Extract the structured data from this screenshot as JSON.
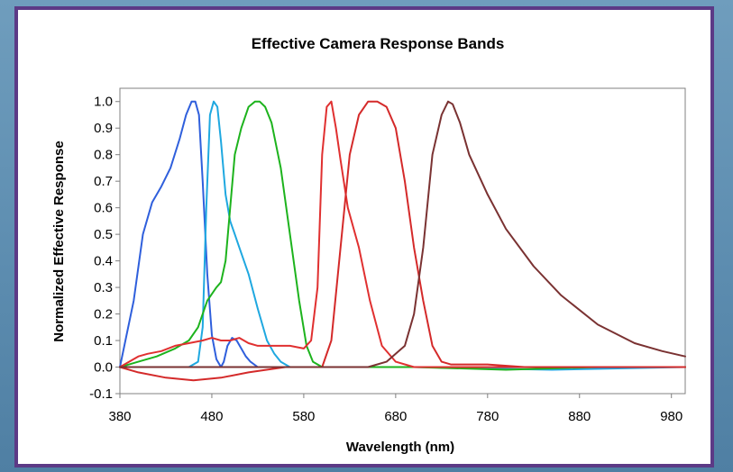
{
  "chart_data": {
    "type": "line",
    "title": "Effective Camera Response Bands",
    "xlabel": "Wavelength (nm)",
    "ylabel": "Normalized Effective Response",
    "xlim": [
      380,
      995
    ],
    "ylim": [
      -0.1,
      1.05
    ],
    "xticks": [
      380,
      480,
      580,
      680,
      780,
      880,
      980
    ],
    "yticks": [
      -0.1,
      0.0,
      0.1,
      0.2,
      0.3,
      0.4,
      0.5,
      0.6,
      0.7,
      0.8,
      0.9,
      1.0
    ],
    "ytick_labels": [
      "-0.1",
      "0.0",
      "0.1",
      "0.2",
      "0.3",
      "0.4",
      "0.5",
      "0.6",
      "0.7",
      "0.8",
      "0.9",
      "1.0"
    ],
    "grid": false,
    "legend": "none",
    "series": [
      {
        "color": "#2f5fdc",
        "x": [
          380,
          395,
          405,
          415,
          425,
          435,
          445,
          452,
          458,
          462,
          466,
          470,
          475,
          480,
          485,
          490,
          493,
          497,
          502,
          507,
          512,
          517,
          522,
          530,
          540,
          560,
          600,
          700,
          800,
          995
        ],
        "y": [
          0.0,
          0.25,
          0.5,
          0.62,
          0.68,
          0.75,
          0.86,
          0.95,
          1.0,
          1.0,
          0.95,
          0.7,
          0.35,
          0.12,
          0.03,
          0.0,
          0.02,
          0.08,
          0.11,
          0.1,
          0.07,
          0.04,
          0.02,
          0.0,
          0.0,
          0.0,
          0.0,
          0.0,
          0.0,
          0.0
        ]
      },
      {
        "color": "#1fa8e0",
        "x": [
          380,
          440,
          455,
          465,
          470,
          474,
          478,
          482,
          486,
          490,
          495,
          500,
          505,
          510,
          520,
          530,
          540,
          548,
          555,
          565,
          580,
          600,
          700,
          850,
          995
        ],
        "y": [
          0.0,
          0.0,
          0.0,
          0.02,
          0.15,
          0.6,
          0.95,
          1.0,
          0.98,
          0.85,
          0.65,
          0.55,
          0.5,
          0.45,
          0.35,
          0.22,
          0.1,
          0.05,
          0.02,
          0.0,
          0.0,
          0.0,
          0.0,
          -0.01,
          0.0
        ]
      },
      {
        "color": "#1db31d",
        "x": [
          380,
          390,
          400,
          420,
          440,
          455,
          465,
          475,
          485,
          490,
          495,
          500,
          505,
          512,
          520,
          527,
          532,
          538,
          545,
          555,
          565,
          575,
          583,
          590,
          600,
          650,
          700,
          800,
          900,
          995
        ],
        "y": [
          0.0,
          0.01,
          0.02,
          0.04,
          0.07,
          0.1,
          0.15,
          0.25,
          0.3,
          0.32,
          0.4,
          0.6,
          0.8,
          0.9,
          0.98,
          1.0,
          1.0,
          0.98,
          0.92,
          0.75,
          0.5,
          0.25,
          0.08,
          0.02,
          0.0,
          0.0,
          0.0,
          -0.01,
          0.0,
          0.0
        ]
      },
      {
        "color": "#e03030",
        "x": [
          380,
          390,
          400,
          410,
          425,
          440,
          455,
          470,
          480,
          490,
          500,
          510,
          520,
          530,
          550,
          565,
          580,
          588,
          595,
          600,
          605,
          610,
          615,
          620,
          628,
          640,
          652,
          665,
          680,
          700,
          750,
          850,
          995
        ],
        "y": [
          0.0,
          0.02,
          0.04,
          0.05,
          0.06,
          0.08,
          0.09,
          0.1,
          0.11,
          0.1,
          0.1,
          0.11,
          0.09,
          0.08,
          0.08,
          0.08,
          0.07,
          0.1,
          0.3,
          0.8,
          0.98,
          1.0,
          0.9,
          0.78,
          0.6,
          0.45,
          0.25,
          0.08,
          0.02,
          0.0,
          0.0,
          0.0,
          0.0
        ]
      },
      {
        "color": "#d42a2a",
        "x": [
          380,
          400,
          430,
          460,
          490,
          520,
          560,
          600,
          610,
          620,
          630,
          640,
          650,
          660,
          670,
          680,
          690,
          700,
          710,
          720,
          730,
          740,
          760,
          780,
          820,
          900,
          995
        ],
        "y": [
          0.0,
          -0.02,
          -0.04,
          -0.05,
          -0.04,
          -0.02,
          0.0,
          0.0,
          0.1,
          0.45,
          0.8,
          0.95,
          1.0,
          1.0,
          0.98,
          0.9,
          0.7,
          0.45,
          0.25,
          0.08,
          0.02,
          0.01,
          0.01,
          0.01,
          0.0,
          0.0,
          0.0
        ]
      },
      {
        "color": "#7a3232",
        "x": [
          380,
          500,
          600,
          650,
          670,
          690,
          700,
          710,
          720,
          730,
          737,
          742,
          750,
          760,
          780,
          800,
          830,
          860,
          900,
          940,
          970,
          995
        ],
        "y": [
          0.0,
          0.0,
          0.0,
          0.0,
          0.02,
          0.08,
          0.2,
          0.45,
          0.8,
          0.95,
          1.0,
          0.99,
          0.92,
          0.8,
          0.65,
          0.52,
          0.38,
          0.27,
          0.16,
          0.09,
          0.06,
          0.04
        ]
      }
    ]
  }
}
